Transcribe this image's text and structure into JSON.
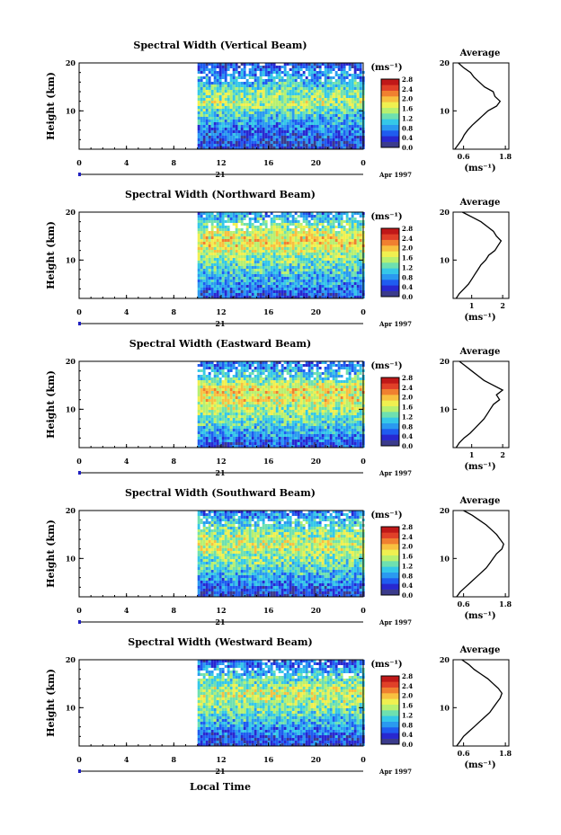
{
  "figure": {
    "xlabel": "Local Time",
    "colorbar_unit": "(ms⁻¹)",
    "colorbar_ticks": [
      "0.0",
      "0.4",
      "0.8",
      "1.2",
      "1.6",
      "2.0",
      "2.4",
      "2.8"
    ],
    "colorbar_colors": [
      "#3b3b8c",
      "#2828d0",
      "#1f5cf0",
      "#2a9af0",
      "#35c8e8",
      "#6ee0b0",
      "#b8f070",
      "#f0f050",
      "#f8c040",
      "#f08030",
      "#e04028",
      "#c01818"
    ],
    "day_label": "21",
    "date_label": "Apr 1997",
    "avg_title": "Average",
    "avg_unit": "(ms⁻¹)"
  },
  "chart_data": [
    {
      "type": "heatmap",
      "title": "Spectral Width (Vertical Beam)",
      "xlabel": "",
      "ylabel": "Height (km)",
      "x_ticks": [
        "0",
        "4",
        "8",
        "12",
        "16",
        "20",
        "0"
      ],
      "xlim": [
        0,
        24
      ],
      "y_ticks": [
        "10",
        "20"
      ],
      "ylim": [
        2,
        20
      ],
      "data_start_hour": 10,
      "profile": {
        "title": "Average",
        "x_ticks": [
          "0.6",
          "1.8"
        ],
        "xlim": [
          0.3,
          1.9
        ],
        "height": [
          2,
          3,
          4,
          5,
          6,
          7,
          8,
          9,
          10,
          11,
          12,
          13,
          14,
          15,
          16,
          17,
          18,
          19,
          20
        ],
        "values": [
          0.35,
          0.45,
          0.55,
          0.62,
          0.72,
          0.85,
          1.0,
          1.15,
          1.3,
          1.55,
          1.65,
          1.5,
          1.45,
          1.2,
          1.05,
          0.9,
          0.8,
          0.6,
          0.45
        ]
      }
    },
    {
      "type": "heatmap",
      "title": "Spectral Width (Northward Beam)",
      "xlabel": "",
      "ylabel": "Height (km)",
      "x_ticks": [
        "0",
        "4",
        "8",
        "12",
        "16",
        "20",
        "0"
      ],
      "xlim": [
        0,
        24
      ],
      "y_ticks": [
        "10",
        "20"
      ],
      "ylim": [
        2,
        20
      ],
      "data_start_hour": 10,
      "profile": {
        "title": "Average",
        "x_ticks": [
          "1",
          "2"
        ],
        "xlim": [
          0.4,
          2.2
        ],
        "height": [
          2,
          3,
          4,
          5,
          6,
          7,
          8,
          9,
          10,
          11,
          12,
          13,
          14,
          15,
          16,
          17,
          18,
          19,
          20
        ],
        "values": [
          0.5,
          0.6,
          0.75,
          0.9,
          1.0,
          1.1,
          1.2,
          1.3,
          1.45,
          1.55,
          1.75,
          1.85,
          1.95,
          1.8,
          1.7,
          1.5,
          1.3,
          1.0,
          0.7
        ]
      }
    },
    {
      "type": "heatmap",
      "title": "Spectral Width (Eastward Beam)",
      "xlabel": "",
      "ylabel": "Height (km)",
      "x_ticks": [
        "0",
        "4",
        "8",
        "12",
        "16",
        "20",
        "0"
      ],
      "xlim": [
        0,
        24
      ],
      "y_ticks": [
        "10",
        "20"
      ],
      "ylim": [
        2,
        20
      ],
      "data_start_hour": 10,
      "profile": {
        "title": "Average",
        "x_ticks": [
          "1",
          "2"
        ],
        "xlim": [
          0.4,
          2.2
        ],
        "height": [
          2,
          3,
          4,
          5,
          6,
          7,
          8,
          9,
          10,
          11,
          12,
          13,
          14,
          15,
          16,
          17,
          18,
          19,
          20
        ],
        "values": [
          0.5,
          0.6,
          0.75,
          0.95,
          1.1,
          1.25,
          1.4,
          1.5,
          1.6,
          1.7,
          1.9,
          1.8,
          2.0,
          1.7,
          1.4,
          1.2,
          1.0,
          0.8,
          0.6
        ]
      }
    },
    {
      "type": "heatmap",
      "title": "Spectral Width (Southward Beam)",
      "xlabel": "",
      "ylabel": "Height (km)",
      "x_ticks": [
        "0",
        "4",
        "8",
        "12",
        "16",
        "20",
        "0"
      ],
      "xlim": [
        0,
        24
      ],
      "y_ticks": [
        "10",
        "20"
      ],
      "ylim": [
        2,
        20
      ],
      "data_start_hour": 10,
      "profile": {
        "title": "Average",
        "x_ticks": [
          "0.6",
          "1.8"
        ],
        "xlim": [
          0.3,
          1.9
        ],
        "height": [
          2,
          3,
          4,
          5,
          6,
          7,
          8,
          9,
          10,
          11,
          12,
          13,
          14,
          15,
          16,
          17,
          18,
          19,
          20
        ],
        "values": [
          0.4,
          0.5,
          0.65,
          0.8,
          0.95,
          1.1,
          1.25,
          1.35,
          1.45,
          1.55,
          1.7,
          1.75,
          1.65,
          1.55,
          1.4,
          1.25,
          1.05,
          0.85,
          0.6
        ]
      }
    },
    {
      "type": "heatmap",
      "title": "Spectral Width (Westward Beam)",
      "xlabel": "Local Time",
      "ylabel": "Height (km)",
      "x_ticks": [
        "0",
        "4",
        "8",
        "12",
        "16",
        "20",
        "0"
      ],
      "xlim": [
        0,
        24
      ],
      "y_ticks": [
        "10",
        "20"
      ],
      "ylim": [
        2,
        20
      ],
      "data_start_hour": 10,
      "profile": {
        "title": "Average",
        "x_ticks": [
          "0.6",
          "1.8"
        ],
        "xlim": [
          0.3,
          1.9
        ],
        "height": [
          2,
          3,
          4,
          5,
          6,
          7,
          8,
          9,
          10,
          11,
          12,
          13,
          14,
          15,
          16,
          17,
          18,
          19,
          20
        ],
        "values": [
          0.4,
          0.5,
          0.6,
          0.75,
          0.9,
          1.05,
          1.2,
          1.35,
          1.45,
          1.55,
          1.65,
          1.7,
          1.6,
          1.45,
          1.3,
          1.1,
          0.9,
          0.75,
          0.55
        ]
      }
    }
  ]
}
